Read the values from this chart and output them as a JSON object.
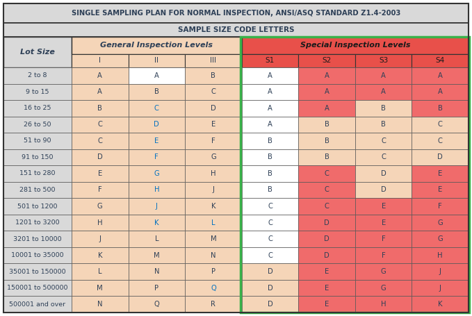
{
  "title1": "SINGLE SAMPLING PLAN FOR NORMAL INSPECTION, ANSI/ASQ STANDARD Z1.4-2003",
  "title2": "SAMPLE SIZE CODE LETTERS",
  "col_header1": "Lot Size",
  "col_header2": "General Inspection Levels",
  "col_header3": "Special Inspection Levels",
  "sub_headers": [
    "I",
    "II",
    "III",
    "S1",
    "S2",
    "S3",
    "S4"
  ],
  "lot_sizes": [
    "2 to 8",
    "9 to 15",
    "16 to 25",
    "26 to 50",
    "51 to 90",
    "91 to 150",
    "151 to 280",
    "281 to 500",
    "501 to 1200",
    "1201 to 3200",
    "3201 to 10000",
    "10001 to 35000",
    "35001 to 150000",
    "150001 to 500000",
    "500001 and over"
  ],
  "table_data": [
    [
      "A",
      "A",
      "B",
      "A",
      "A",
      "A",
      "A"
    ],
    [
      "A",
      "B",
      "C",
      "A",
      "A",
      "A",
      "A"
    ],
    [
      "B",
      "C",
      "D",
      "A",
      "A",
      "B",
      "B"
    ],
    [
      "C",
      "D",
      "E",
      "A",
      "B",
      "B",
      "C"
    ],
    [
      "C",
      "E",
      "F",
      "B",
      "B",
      "C",
      "C"
    ],
    [
      "D",
      "F",
      "G",
      "B",
      "B",
      "C",
      "D"
    ],
    [
      "E",
      "G",
      "H",
      "B",
      "C",
      "D",
      "E"
    ],
    [
      "F",
      "H",
      "J",
      "B",
      "C",
      "D",
      "E"
    ],
    [
      "G",
      "J",
      "K",
      "C",
      "C",
      "E",
      "F"
    ],
    [
      "H",
      "K",
      "L",
      "C",
      "D",
      "E",
      "G"
    ],
    [
      "J",
      "L",
      "M",
      "C",
      "D",
      "F",
      "G"
    ],
    [
      "K",
      "M",
      "N",
      "C",
      "D",
      "F",
      "H"
    ],
    [
      "L",
      "N",
      "P",
      "D",
      "E",
      "G",
      "J"
    ],
    [
      "M",
      "P",
      "Q",
      "D",
      "E",
      "G",
      "J"
    ],
    [
      "N",
      "Q",
      "R",
      "D",
      "E",
      "H",
      "K"
    ]
  ],
  "cell_colors": [
    [
      "#f5d5b8",
      "#ffffff",
      "#f5d5b8",
      "#ffffff",
      "#f06b6b",
      "#f06b6b",
      "#f06b6b"
    ],
    [
      "#f5d5b8",
      "#f5d5b8",
      "#f5d5b8",
      "#ffffff",
      "#f06b6b",
      "#f06b6b",
      "#f06b6b"
    ],
    [
      "#f5d5b8",
      "#f5d5b8",
      "#f5d5b8",
      "#ffffff",
      "#f06b6b",
      "#f5d5b8",
      "#f06b6b"
    ],
    [
      "#f5d5b8",
      "#f5d5b8",
      "#f5d5b8",
      "#ffffff",
      "#f5d5b8",
      "#f5d5b8",
      "#f5d5b8"
    ],
    [
      "#f5d5b8",
      "#f5d5b8",
      "#f5d5b8",
      "#ffffff",
      "#f5d5b8",
      "#f5d5b8",
      "#f5d5b8"
    ],
    [
      "#f5d5b8",
      "#f5d5b8",
      "#f5d5b8",
      "#ffffff",
      "#f5d5b8",
      "#f5d5b8",
      "#f5d5b8"
    ],
    [
      "#f5d5b8",
      "#f5d5b8",
      "#f5d5b8",
      "#ffffff",
      "#f06b6b",
      "#f5d5b8",
      "#f06b6b"
    ],
    [
      "#f5d5b8",
      "#f5d5b8",
      "#f5d5b8",
      "#ffffff",
      "#f06b6b",
      "#f5d5b8",
      "#f06b6b"
    ],
    [
      "#f5d5b8",
      "#f5d5b8",
      "#f5d5b8",
      "#ffffff",
      "#f06b6b",
      "#f06b6b",
      "#f06b6b"
    ],
    [
      "#f5d5b8",
      "#f5d5b8",
      "#f5d5b8",
      "#ffffff",
      "#f06b6b",
      "#f06b6b",
      "#f06b6b"
    ],
    [
      "#f5d5b8",
      "#f5d5b8",
      "#f5d5b8",
      "#ffffff",
      "#f06b6b",
      "#f06b6b",
      "#f06b6b"
    ],
    [
      "#f5d5b8",
      "#f5d5b8",
      "#f5d5b8",
      "#ffffff",
      "#f06b6b",
      "#f06b6b",
      "#f06b6b"
    ],
    [
      "#f5d5b8",
      "#f5d5b8",
      "#f5d5b8",
      "#f5d5b8",
      "#f06b6b",
      "#f06b6b",
      "#f06b6b"
    ],
    [
      "#f5d5b8",
      "#f5d5b8",
      "#f5d5b8",
      "#f5d5b8",
      "#f06b6b",
      "#f06b6b",
      "#f06b6b"
    ],
    [
      "#f5d5b8",
      "#f5d5b8",
      "#f5d5b8",
      "#f5d5b8",
      "#f06b6b",
      "#f06b6b",
      "#f06b6b"
    ]
  ],
  "col2_text_colors": [
    "#2e4057",
    "#2e4057",
    "#0070c0",
    "#0070c0",
    "#0070c0",
    "#0070c0",
    "#0070c0",
    "#0070c0",
    "#0070c0",
    "#0070c0",
    "#2e4057",
    "#2e4057",
    "#2e4057",
    "#2e4057",
    "#2e4057"
  ],
  "col3_text_colors": [
    "#2e4057",
    "#2e4057",
    "#2e4057",
    "#2e4057",
    "#2e4057",
    "#2e4057",
    "#2e4057",
    "#2e4057",
    "#2e4057",
    "#0070c0",
    "#2e4057",
    "#2e4057",
    "#2e4057",
    "#0070c0",
    "#2e4057"
  ],
  "colors": {
    "title_bg": "#d9d9d9",
    "header_bg_general": "#f5d5b8",
    "header_bg_special": "#e8504a",
    "green_border": "#3ab24a",
    "lot_size_bg": "#d9d9d9",
    "title_text": "#2e4057",
    "white": "#ffffff",
    "border_dark": "#555555"
  }
}
